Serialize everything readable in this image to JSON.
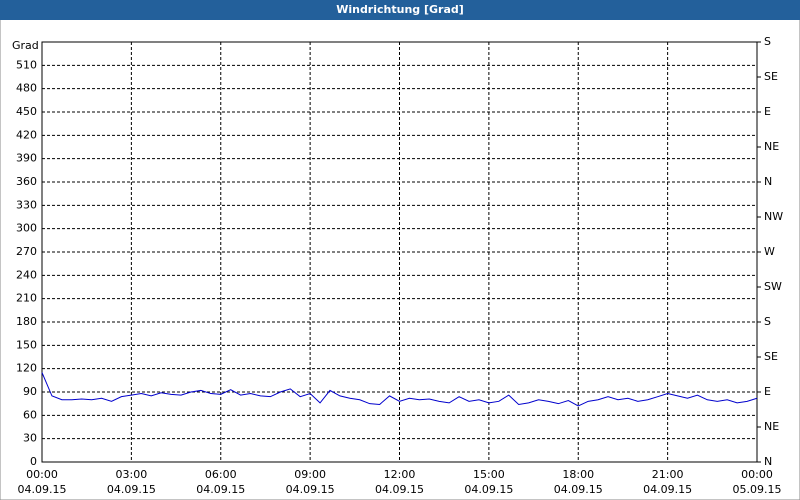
{
  "chart_data": {
    "type": "line",
    "title": "Windrichtung [Grad]",
    "ylabel": "Grad",
    "xlim": [
      0,
      1440
    ],
    "xticks": [
      {
        "value": 0,
        "label": "00:00"
      },
      {
        "value": 180,
        "label": "03:00"
      },
      {
        "value": 360,
        "label": "06:00"
      },
      {
        "value": 540,
        "label": "09:00"
      },
      {
        "value": 720,
        "label": "12:00"
      },
      {
        "value": 900,
        "label": "15:00"
      },
      {
        "value": 1080,
        "label": "18:00"
      },
      {
        "value": 1260,
        "label": "21:00"
      },
      {
        "value": 1440,
        "label": "00:00"
      }
    ],
    "xtick_dates": [
      "04.09.15",
      "04.09.15",
      "04.09.15",
      "04.09.15",
      "04.09.15",
      "04.09.15",
      "04.09.15",
      "04.09.15",
      "05.09.15"
    ],
    "ylim": [
      0,
      540
    ],
    "yticks": [
      0,
      30,
      60,
      90,
      120,
      150,
      180,
      210,
      240,
      270,
      300,
      330,
      360,
      390,
      420,
      450,
      480,
      510
    ],
    "y2lim": [
      0,
      540
    ],
    "y2ticks": [
      {
        "value": 0,
        "label": "N"
      },
      {
        "value": 45,
        "label": "NE"
      },
      {
        "value": 90,
        "label": "E"
      },
      {
        "value": 135,
        "label": "SE"
      },
      {
        "value": 180,
        "label": "S"
      },
      {
        "value": 225,
        "label": "SW"
      },
      {
        "value": 270,
        "label": "W"
      },
      {
        "value": 315,
        "label": "NW"
      },
      {
        "value": 360,
        "label": "N"
      },
      {
        "value": 405,
        "label": "NE"
      },
      {
        "value": 450,
        "label": "E"
      },
      {
        "value": 495,
        "label": "SE"
      },
      {
        "value": 540,
        "label": "S"
      }
    ],
    "grid": true,
    "x": [
      0,
      20,
      40,
      60,
      80,
      100,
      120,
      140,
      160,
      180,
      200,
      220,
      240,
      260,
      280,
      300,
      320,
      340,
      360,
      380,
      400,
      420,
      440,
      460,
      480,
      500,
      520,
      540,
      560,
      580,
      600,
      620,
      640,
      660,
      680,
      700,
      720,
      740,
      760,
      780,
      800,
      820,
      840,
      860,
      880,
      900,
      920,
      940,
      960,
      980,
      1000,
      1020,
      1040,
      1060,
      1080,
      1100,
      1120,
      1140,
      1160,
      1180,
      1200,
      1220,
      1240,
      1260,
      1280,
      1300,
      1320,
      1340,
      1360,
      1380,
      1400,
      1420,
      1440
    ],
    "series": [
      {
        "color": "#0000cc",
        "values": [
          115,
          85,
          80,
          80,
          81,
          80,
          82,
          78,
          84,
          86,
          88,
          85,
          89,
          87,
          86,
          90,
          92,
          88,
          87,
          93,
          86,
          88,
          85,
          84,
          90,
          94,
          84,
          88,
          76,
          92,
          85,
          82,
          80,
          75,
          74,
          85,
          78,
          82,
          80,
          81,
          78,
          76,
          84,
          78,
          80,
          76,
          78,
          86,
          74,
          76,
          80,
          78,
          75,
          79,
          72,
          78,
          80,
          84,
          80,
          82,
          78,
          80,
          84,
          88,
          85,
          82,
          86,
          80,
          78,
          80,
          76,
          78,
          82
        ]
      }
    ]
  }
}
